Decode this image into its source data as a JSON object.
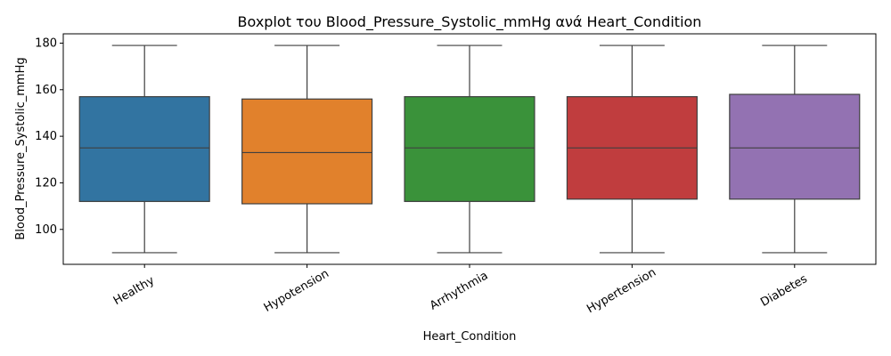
{
  "chart_data": {
    "type": "box",
    "title": "Boxplot του Blood_Pressure_Systolic_mmHg ανά Heart_Condition",
    "xlabel": "Heart_Condition",
    "ylabel": "Blood_Pressure_Systolic_mmHg",
    "ylim": [
      85,
      184
    ],
    "yticks": [
      100,
      120,
      140,
      160,
      180
    ],
    "categories": [
      "Healthy",
      "Hypotension",
      "Arrhythmia",
      "Hypertension",
      "Diabetes"
    ],
    "colors": [
      "#3274a1",
      "#e1812c",
      "#3a923a",
      "#c03d3e",
      "#9372b2"
    ],
    "boxes": [
      {
        "category": "Healthy",
        "min": 90,
        "q1": 112,
        "median": 135,
        "q3": 157,
        "max": 179
      },
      {
        "category": "Hypotension",
        "min": 90,
        "q1": 111,
        "median": 133,
        "q3": 156,
        "max": 179
      },
      {
        "category": "Arrhythmia",
        "min": 90,
        "q1": 112,
        "median": 135,
        "q3": 157,
        "max": 179
      },
      {
        "category": "Hypertension",
        "min": 90,
        "q1": 113,
        "median": 135,
        "q3": 157,
        "max": 179
      },
      {
        "category": "Diabetes",
        "min": 90,
        "q1": 113,
        "median": 135,
        "q3": 158,
        "max": 179
      }
    ]
  }
}
